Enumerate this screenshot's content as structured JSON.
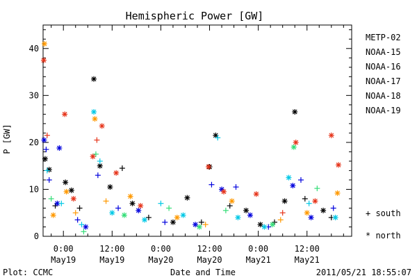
{
  "chart_data": {
    "type": "scatter",
    "title": "Hemispheric Power [GW]",
    "ylabel": "P [GW]",
    "xlabel": "Date and Time",
    "ylim": [
      0,
      45
    ],
    "xlim": [
      "2011-05-18 19:00",
      "2011-05-21 23:00"
    ],
    "yticks": [
      0,
      10,
      20,
      30,
      40
    ],
    "xticks": [
      {
        "time": "2011-05-19 00:00",
        "label_top": "0:00",
        "label_bottom": "May19"
      },
      {
        "time": "2011-05-19 12:00",
        "label_top": "12:00",
        "label_bottom": "May19"
      },
      {
        "time": "2011-05-20 00:00",
        "label_top": "0:00",
        "label_bottom": "May20"
      },
      {
        "time": "2011-05-20 12:00",
        "label_top": "12:00",
        "label_bottom": "May20"
      },
      {
        "time": "2011-05-21 00:00",
        "label_top": "0:00",
        "label_bottom": "May21"
      },
      {
        "time": "2011-05-21 12:00",
        "label_top": "12:00",
        "label_bottom": "May21"
      }
    ],
    "legend_position": "right",
    "marker_legend": {
      "south": "+ south",
      "north": "* north"
    },
    "series": [
      {
        "name": "METP-02",
        "color": "#000000",
        "points": [
          {
            "t": "2011-05-18 19:30",
            "v": 16.5,
            "h": "north"
          },
          {
            "t": "2011-05-18 20:30",
            "v": 14.2,
            "h": "north"
          },
          {
            "t": "2011-05-18 22:00",
            "v": 6.5,
            "h": "south"
          },
          {
            "t": "2011-05-19 00:30",
            "v": 11.5,
            "h": "north"
          },
          {
            "t": "2011-05-19 02:00",
            "v": 9.8,
            "h": "north"
          },
          {
            "t": "2011-05-19 04:00",
            "v": 6.0,
            "h": "south"
          },
          {
            "t": "2011-05-19 07:30",
            "v": 33.5,
            "h": "north"
          },
          {
            "t": "2011-05-19 09:00",
            "v": 15.0,
            "h": "north"
          },
          {
            "t": "2011-05-19 11:30",
            "v": 10.5,
            "h": "north"
          },
          {
            "t": "2011-05-19 14:30",
            "v": 14.5,
            "h": "south"
          },
          {
            "t": "2011-05-19 17:00",
            "v": 7.0,
            "h": "north"
          },
          {
            "t": "2011-05-19 21:00",
            "v": 4.0,
            "h": "south"
          },
          {
            "t": "2011-05-20 03:00",
            "v": 3.0,
            "h": "north"
          },
          {
            "t": "2011-05-20 06:30",
            "v": 8.2,
            "h": "north"
          },
          {
            "t": "2011-05-20 10:00",
            "v": 3.0,
            "h": "south"
          },
          {
            "t": "2011-05-20 12:00",
            "v": 14.8,
            "h": "north"
          },
          {
            "t": "2011-05-20 13:30",
            "v": 21.5,
            "h": "north"
          },
          {
            "t": "2011-05-20 17:00",
            "v": 6.5,
            "h": "south"
          },
          {
            "t": "2011-05-20 21:00",
            "v": 5.5,
            "h": "north"
          },
          {
            "t": "2011-05-21 00:30",
            "v": 2.5,
            "h": "north"
          },
          {
            "t": "2011-05-21 04:00",
            "v": 3.0,
            "h": "south"
          },
          {
            "t": "2011-05-21 06:30",
            "v": 7.5,
            "h": "north"
          },
          {
            "t": "2011-05-21 09:00",
            "v": 26.5,
            "h": "north"
          },
          {
            "t": "2011-05-21 11:30",
            "v": 8.0,
            "h": "south"
          },
          {
            "t": "2011-05-21 16:00",
            "v": 5.5,
            "h": "north"
          },
          {
            "t": "2011-05-21 18:00",
            "v": 4.0,
            "h": "south"
          }
        ]
      },
      {
        "name": "NOAA-15",
        "color": "#0000dd",
        "points": [
          {
            "t": "2011-05-18 19:15",
            "v": 20.5,
            "h": "north"
          },
          {
            "t": "2011-05-18 19:45",
            "v": 18.5,
            "h": "south"
          },
          {
            "t": "2011-05-18 20:30",
            "v": 12.0,
            "h": "south"
          },
          {
            "t": "2011-05-18 22:30",
            "v": 7.0,
            "h": "north"
          },
          {
            "t": "2011-05-18 23:00",
            "v": 18.8,
            "h": "north"
          },
          {
            "t": "2011-05-19 03:30",
            "v": 3.5,
            "h": "south"
          },
          {
            "t": "2011-05-19 05:30",
            "v": 2.0,
            "h": "north"
          },
          {
            "t": "2011-05-19 08:30",
            "v": 13.0,
            "h": "south"
          },
          {
            "t": "2011-05-19 13:30",
            "v": 6.0,
            "h": "south"
          },
          {
            "t": "2011-05-19 18:30",
            "v": 5.5,
            "h": "north"
          },
          {
            "t": "2011-05-20 01:00",
            "v": 3.0,
            "h": "south"
          },
          {
            "t": "2011-05-20 08:30",
            "v": 2.5,
            "h": "north"
          },
          {
            "t": "2011-05-20 12:30",
            "v": 11.0,
            "h": "south"
          },
          {
            "t": "2011-05-20 15:00",
            "v": 10.0,
            "h": "north"
          },
          {
            "t": "2011-05-20 18:30",
            "v": 10.5,
            "h": "south"
          },
          {
            "t": "2011-05-20 22:00",
            "v": 4.5,
            "h": "north"
          },
          {
            "t": "2011-05-21 02:30",
            "v": 2.0,
            "h": "south"
          },
          {
            "t": "2011-05-21 08:30",
            "v": 10.8,
            "h": "north"
          },
          {
            "t": "2011-05-21 10:30",
            "v": 12.0,
            "h": "south"
          },
          {
            "t": "2011-05-21 13:00",
            "v": 4.0,
            "h": "north"
          },
          {
            "t": "2011-05-21 18:30",
            "v": 6.0,
            "h": "south"
          }
        ]
      },
      {
        "name": "NOAA-16",
        "color": "#00c8e6",
        "points": [
          {
            "t": "2011-05-18 20:00",
            "v": 14.0,
            "h": "south"
          },
          {
            "t": "2011-05-18 23:30",
            "v": 7.0,
            "h": "south"
          },
          {
            "t": "2011-05-19 04:30",
            "v": 2.5,
            "h": "south"
          },
          {
            "t": "2011-05-19 07:30",
            "v": 26.5,
            "h": "north"
          },
          {
            "t": "2011-05-19 09:00",
            "v": 16.0,
            "h": "south"
          },
          {
            "t": "2011-05-19 12:00",
            "v": 5.0,
            "h": "north"
          },
          {
            "t": "2011-05-19 20:00",
            "v": 3.5,
            "h": "north"
          },
          {
            "t": "2011-05-20 00:00",
            "v": 7.0,
            "h": "south"
          },
          {
            "t": "2011-05-20 05:30",
            "v": 4.5,
            "h": "north"
          },
          {
            "t": "2011-05-20 14:00",
            "v": 21.0,
            "h": "south"
          },
          {
            "t": "2011-05-20 19:00",
            "v": 4.0,
            "h": "north"
          },
          {
            "t": "2011-05-21 01:30",
            "v": 2.0,
            "h": "north"
          },
          {
            "t": "2011-05-21 07:30",
            "v": 12.5,
            "h": "north"
          },
          {
            "t": "2011-05-21 12:30",
            "v": 7.0,
            "h": "south"
          },
          {
            "t": "2011-05-21 19:00",
            "v": 4.0,
            "h": "north"
          }
        ]
      },
      {
        "name": "NOAA-17",
        "color": "#33dd77",
        "points": [
          {
            "t": "2011-05-18 21:00",
            "v": 8.0,
            "h": "south"
          },
          {
            "t": "2011-05-19 05:00",
            "v": 1.0,
            "h": "south"
          },
          {
            "t": "2011-05-19 08:00",
            "v": 17.5,
            "h": "south"
          },
          {
            "t": "2011-05-19 15:00",
            "v": 4.5,
            "h": "north"
          },
          {
            "t": "2011-05-20 02:00",
            "v": 6.0,
            "h": "south"
          },
          {
            "t": "2011-05-20 09:30",
            "v": 2.0,
            "h": "north"
          },
          {
            "t": "2011-05-20 16:00",
            "v": 5.5,
            "h": "south"
          },
          {
            "t": "2011-05-21 03:30",
            "v": 2.5,
            "h": "north"
          },
          {
            "t": "2011-05-21 08:45",
            "v": 19.0,
            "h": "north"
          },
          {
            "t": "2011-05-21 14:30",
            "v": 10.2,
            "h": "south"
          }
        ]
      },
      {
        "name": "NOAA-18",
        "color": "#ff9900",
        "points": [
          {
            "t": "2011-05-18 19:20",
            "v": 41.0,
            "h": "north"
          },
          {
            "t": "2011-05-18 21:30",
            "v": 4.5,
            "h": "north"
          },
          {
            "t": "2011-05-19 00:45",
            "v": 9.5,
            "h": "north"
          },
          {
            "t": "2011-05-19 03:00",
            "v": 5.0,
            "h": "south"
          },
          {
            "t": "2011-05-19 07:45",
            "v": 25.0,
            "h": "north"
          },
          {
            "t": "2011-05-19 10:30",
            "v": 7.5,
            "h": "south"
          },
          {
            "t": "2011-05-19 16:30",
            "v": 8.5,
            "h": "north"
          },
          {
            "t": "2011-05-20 04:00",
            "v": 4.0,
            "h": "north"
          },
          {
            "t": "2011-05-20 11:00",
            "v": 2.5,
            "h": "south"
          },
          {
            "t": "2011-05-20 17:30",
            "v": 7.5,
            "h": "north"
          },
          {
            "t": "2011-05-21 05:30",
            "v": 3.5,
            "h": "south"
          },
          {
            "t": "2011-05-21 12:00",
            "v": 5.0,
            "h": "north"
          },
          {
            "t": "2011-05-21 19:30",
            "v": 9.2,
            "h": "north"
          }
        ]
      },
      {
        "name": "NOAA-19",
        "color": "#e63319",
        "points": [
          {
            "t": "2011-05-18 19:10",
            "v": 37.5,
            "h": "north"
          },
          {
            "t": "2011-05-18 20:00",
            "v": 21.5,
            "h": "south"
          },
          {
            "t": "2011-05-19 00:20",
            "v": 26.0,
            "h": "north"
          },
          {
            "t": "2011-05-19 02:30",
            "v": 8.0,
            "h": "north"
          },
          {
            "t": "2011-05-19 07:15",
            "v": 17.0,
            "h": "north"
          },
          {
            "t": "2011-05-19 08:15",
            "v": 20.5,
            "h": "south"
          },
          {
            "t": "2011-05-19 09:30",
            "v": 23.5,
            "h": "north"
          },
          {
            "t": "2011-05-19 13:00",
            "v": 13.5,
            "h": "north"
          },
          {
            "t": "2011-05-19 19:00",
            "v": 6.5,
            "h": "north"
          },
          {
            "t": "2011-05-20 11:45",
            "v": 14.8,
            "h": "north"
          },
          {
            "t": "2011-05-20 15:30",
            "v": 9.5,
            "h": "north"
          },
          {
            "t": "2011-05-20 23:30",
            "v": 9.0,
            "h": "north"
          },
          {
            "t": "2011-05-21 06:00",
            "v": 5.0,
            "h": "south"
          },
          {
            "t": "2011-05-21 09:15",
            "v": 20.0,
            "h": "north"
          },
          {
            "t": "2011-05-21 14:00",
            "v": 7.5,
            "h": "north"
          },
          {
            "t": "2011-05-21 18:00",
            "v": 21.5,
            "h": "north"
          },
          {
            "t": "2011-05-21 19:45",
            "v": 15.2,
            "h": "north"
          }
        ]
      }
    ]
  },
  "footer": {
    "plot_credit": "Plot: CCMC",
    "timestamp": "2011/05/21 18:55:07"
  }
}
